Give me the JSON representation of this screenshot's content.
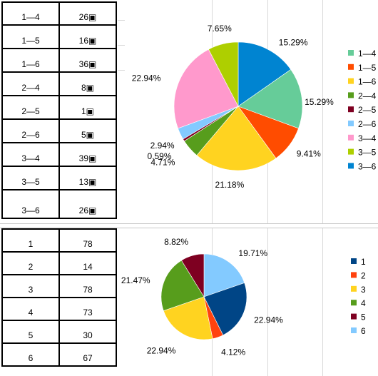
{
  "table_top": {
    "rows": [
      [
        "1—4",
        "26▣"
      ],
      [
        "1—5",
        "16▣"
      ],
      [
        "1—6",
        "36▣"
      ],
      [
        "2—4",
        "8▣"
      ],
      [
        "2—5",
        "1▣"
      ],
      [
        "2—6",
        "5▣"
      ],
      [
        "3—4",
        "39▣"
      ],
      [
        "3—5",
        "13▣"
      ],
      [
        "3—6",
        "26▣"
      ]
    ]
  },
  "table_bottom": {
    "rows": [
      [
        "1",
        "78"
      ],
      [
        "2",
        "14"
      ],
      [
        "3",
        "78"
      ],
      [
        "4",
        "73"
      ],
      [
        "5",
        "30"
      ],
      [
        "6",
        "67"
      ]
    ]
  },
  "chart_data": [
    {
      "type": "pie",
      "categories": [
        "1—4",
        "1—5",
        "1—6",
        "2—4",
        "2—5",
        "2—6",
        "3—4",
        "3—5",
        "3—6"
      ],
      "values": [
        26,
        16,
        36,
        8,
        1,
        5,
        39,
        13,
        26
      ],
      "data_labels": [
        "15.29%",
        "9.41%",
        "21.18%",
        "4.71%",
        "0.59%",
        "2.94%",
        "22.94%",
        "7.65%",
        "15.29%"
      ],
      "colors": [
        "#66cc99",
        "#ff4c00",
        "#ffd320",
        "#579d1c",
        "#7e0021",
        "#83caff",
        "#ff99cc",
        "#aecf00",
        "#0084d1"
      ],
      "start_category": "3—6",
      "legend_position": "right"
    },
    {
      "type": "pie",
      "categories": [
        "1",
        "2",
        "3",
        "4",
        "5",
        "6"
      ],
      "values": [
        78,
        14,
        78,
        73,
        30,
        67
      ],
      "data_labels": [
        "22.94%",
        "4.12%",
        "22.94%",
        "21.47%",
        "8.82%",
        "19.71%"
      ],
      "colors": [
        "#004586",
        "#ff420e",
        "#ffd320",
        "#579d1c",
        "#7e0021",
        "#83caff"
      ],
      "start_category": "6",
      "legend_position": "right"
    }
  ]
}
